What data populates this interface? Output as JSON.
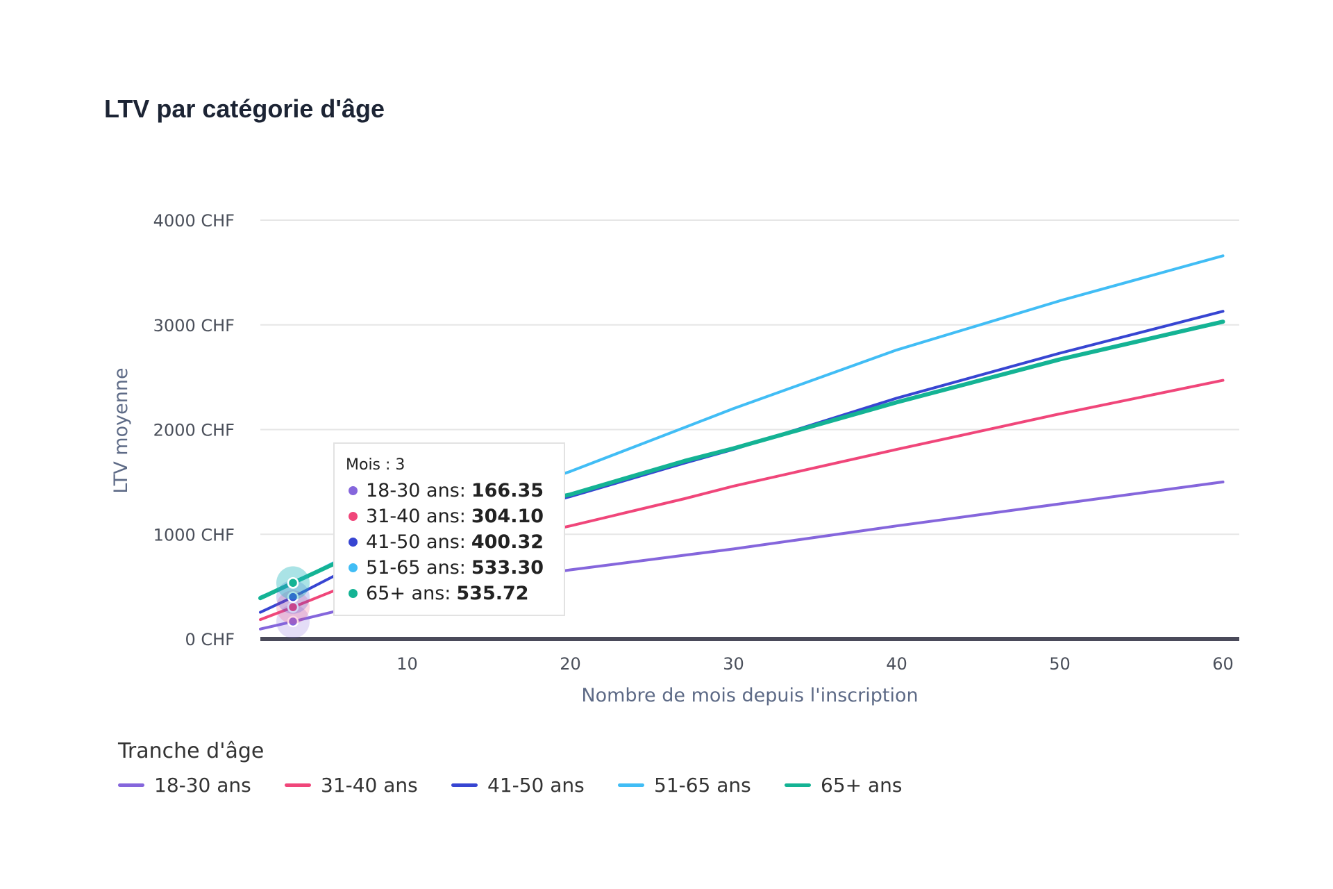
{
  "title": "LTV par catégorie d'âge",
  "chart_data": {
    "type": "line",
    "title": "LTV par catégorie d'âge",
    "xlabel": "Nombre de mois depuis l'inscription",
    "ylabel": "LTV moyenne",
    "xlim": [
      1,
      61
    ],
    "ylim": [
      0,
      4000
    ],
    "x_ticks": [
      10,
      20,
      30,
      40,
      50,
      60
    ],
    "y_ticks": [
      {
        "value": 0,
        "label": "0 CHF"
      },
      {
        "value": 1000,
        "label": "1000 CHF"
      },
      {
        "value": 2000,
        "label": "2000 CHF"
      },
      {
        "value": 3000,
        "label": "3000 CHF"
      },
      {
        "value": 4000,
        "label": "4000 CHF"
      }
    ],
    "grid": true,
    "x": [
      1,
      3,
      10,
      20,
      27,
      30,
      40,
      50,
      60
    ],
    "series": [
      {
        "name": "18-30 ans",
        "color": "#8566dc",
        "values": [
          95,
          166.35,
          430,
          660,
          800,
          860,
          1080,
          1290,
          1500
        ]
      },
      {
        "name": "31-40 ans",
        "color": "#f0467a",
        "values": [
          185,
          304.1,
          740,
          1080,
          1340,
          1460,
          1810,
          2150,
          2470
        ]
      },
      {
        "name": "41-50 ans",
        "color": "#3745d2",
        "values": [
          255,
          400.32,
          960,
          1360,
          1680,
          1810,
          2300,
          2730,
          3130
        ]
      },
      {
        "name": "51-65 ans",
        "color": "#41bdf5",
        "values": [
          400,
          533.3,
          1080,
          1600,
          2020,
          2200,
          2760,
          3230,
          3660
        ]
      },
      {
        "name": "65+ ans",
        "color": "#14b394",
        "values": [
          390,
          535.72,
          1040,
          1380,
          1700,
          1820,
          2260,
          2670,
          3030
        ]
      }
    ],
    "hover": {
      "x": 3,
      "header": "Mois : 3",
      "rows": [
        {
          "label": "18-30 ans:",
          "value": "166.35"
        },
        {
          "label": "31-40 ans:",
          "value": "304.10"
        },
        {
          "label": "41-50 ans:",
          "value": "400.32"
        },
        {
          "label": "51-65 ans:",
          "value": "533.30"
        },
        {
          "label": "65+ ans:",
          "value": "535.72"
        }
      ]
    },
    "legend": {
      "title": "Tranche d'âge",
      "position": "bottom-left"
    }
  }
}
